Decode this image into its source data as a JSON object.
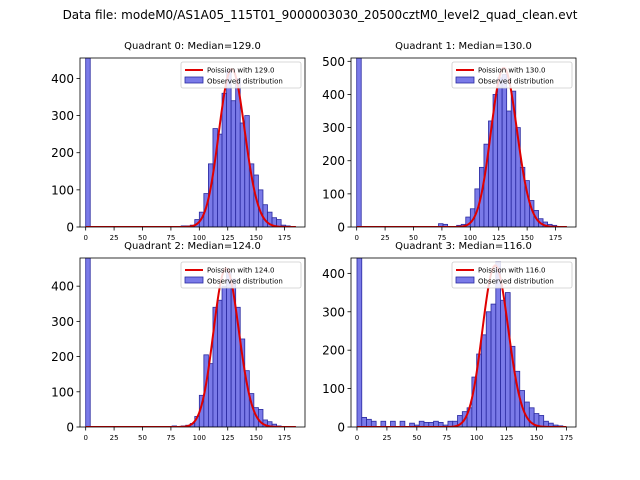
{
  "figure": {
    "title": "Data file: modeM0/AS1A05_115T01_9000003030_20500cztM0_level2_quad_clean.evt"
  },
  "colors": {
    "bar_fill": "#7a7ae8",
    "bar_edge": "#2a2aa0",
    "poisson_line": "#e00000"
  },
  "chart_data": [
    {
      "type": "bar",
      "title": "Quadrant 0: Median=129.0",
      "xlim": [
        -5,
        193
      ],
      "ylim": [
        0,
        455
      ],
      "xticks": [
        0,
        25,
        50,
        75,
        100,
        125,
        150,
        175
      ],
      "yticks": [
        0,
        100,
        200,
        300,
        400
      ],
      "bin_width": 4,
      "bins": [
        {
          "x": 0,
          "v": 455
        },
        {
          "x": 84,
          "v": 3
        },
        {
          "x": 88,
          "v": 3
        },
        {
          "x": 92,
          "v": 5
        },
        {
          "x": 96,
          "v": 20
        },
        {
          "x": 100,
          "v": 40
        },
        {
          "x": 104,
          "v": 90
        },
        {
          "x": 108,
          "v": 170
        },
        {
          "x": 112,
          "v": 265
        },
        {
          "x": 116,
          "v": 250
        },
        {
          "x": 120,
          "v": 360
        },
        {
          "x": 124,
          "v": 420
        },
        {
          "x": 128,
          "v": 340
        },
        {
          "x": 132,
          "v": 400
        },
        {
          "x": 136,
          "v": 280
        },
        {
          "x": 140,
          "v": 300
        },
        {
          "x": 144,
          "v": 170
        },
        {
          "x": 148,
          "v": 140
        },
        {
          "x": 152,
          "v": 100
        },
        {
          "x": 156,
          "v": 60
        },
        {
          "x": 160,
          "v": 40
        },
        {
          "x": 164,
          "v": 25
        },
        {
          "x": 168,
          "v": 20
        },
        {
          "x": 172,
          "v": 5
        },
        {
          "x": 176,
          "v": 3
        }
      ],
      "series": [
        {
          "name": "Poission with 129.0",
          "type": "line",
          "mean": 129.0,
          "peak": 425,
          "x_range": [
            0,
            185
          ]
        },
        {
          "name": "Observed distribution",
          "type": "bar"
        }
      ]
    },
    {
      "type": "bar",
      "title": "Quadrant 1: Median=130.0",
      "xlim": [
        -5,
        193
      ],
      "ylim": [
        0,
        510
      ],
      "xticks": [
        0,
        25,
        50,
        75,
        100,
        125,
        150,
        175
      ],
      "yticks": [
        0,
        100,
        200,
        300,
        400,
        500
      ],
      "bin_width": 4,
      "bins": [
        {
          "x": 0,
          "v": 510
        },
        {
          "x": 72,
          "v": 10
        },
        {
          "x": 76,
          "v": 8
        },
        {
          "x": 88,
          "v": 5
        },
        {
          "x": 92,
          "v": 8
        },
        {
          "x": 96,
          "v": 30
        },
        {
          "x": 100,
          "v": 55
        },
        {
          "x": 104,
          "v": 115
        },
        {
          "x": 108,
          "v": 180
        },
        {
          "x": 112,
          "v": 250
        },
        {
          "x": 116,
          "v": 320
        },
        {
          "x": 120,
          "v": 400
        },
        {
          "x": 124,
          "v": 450
        },
        {
          "x": 128,
          "v": 460
        },
        {
          "x": 132,
          "v": 350
        },
        {
          "x": 136,
          "v": 410
        },
        {
          "x": 140,
          "v": 300
        },
        {
          "x": 144,
          "v": 180
        },
        {
          "x": 148,
          "v": 140
        },
        {
          "x": 152,
          "v": 80
        },
        {
          "x": 156,
          "v": 50
        },
        {
          "x": 160,
          "v": 25
        },
        {
          "x": 164,
          "v": 15
        },
        {
          "x": 168,
          "v": 8
        },
        {
          "x": 172,
          "v": 5
        }
      ],
      "series": [
        {
          "name": "Poission with 130.0",
          "type": "line",
          "mean": 130.0,
          "peak": 480,
          "x_range": [
            0,
            185
          ]
        },
        {
          "name": "Observed distribution",
          "type": "bar"
        }
      ]
    },
    {
      "type": "bar",
      "title": "Quadrant 2: Median=124.0",
      "xlim": [
        -5,
        193
      ],
      "ylim": [
        0,
        480
      ],
      "xticks": [
        0,
        25,
        50,
        75,
        100,
        125,
        150,
        175
      ],
      "yticks": [
        0,
        100,
        200,
        300,
        400
      ],
      "bin_width": 4,
      "bins": [
        {
          "x": 0,
          "v": 480
        },
        {
          "x": 76,
          "v": 3
        },
        {
          "x": 84,
          "v": 3
        },
        {
          "x": 88,
          "v": 5
        },
        {
          "x": 92,
          "v": 10
        },
        {
          "x": 96,
          "v": 30
        },
        {
          "x": 100,
          "v": 90
        },
        {
          "x": 104,
          "v": 205
        },
        {
          "x": 108,
          "v": 180
        },
        {
          "x": 112,
          "v": 340
        },
        {
          "x": 116,
          "v": 360
        },
        {
          "x": 120,
          "v": 400
        },
        {
          "x": 124,
          "v": 440
        },
        {
          "x": 128,
          "v": 420
        },
        {
          "x": 132,
          "v": 340
        },
        {
          "x": 136,
          "v": 250
        },
        {
          "x": 140,
          "v": 160
        },
        {
          "x": 144,
          "v": 95
        },
        {
          "x": 148,
          "v": 55
        },
        {
          "x": 152,
          "v": 50
        },
        {
          "x": 156,
          "v": 20
        },
        {
          "x": 160,
          "v": 15
        },
        {
          "x": 164,
          "v": 8
        },
        {
          "x": 168,
          "v": 3
        }
      ],
      "series": [
        {
          "name": "Poission with 124.0",
          "type": "line",
          "mean": 124.0,
          "peak": 450,
          "x_range": [
            0,
            185
          ]
        },
        {
          "name": "Observed distribution",
          "type": "bar"
        }
      ]
    },
    {
      "type": "bar",
      "title": "Quadrant 3: Median=116.0",
      "xlim": [
        -5,
        183
      ],
      "ylim": [
        0,
        440
      ],
      "xticks": [
        0,
        25,
        50,
        75,
        100,
        125,
        150,
        175
      ],
      "yticks": [
        0,
        100,
        200,
        300,
        400
      ],
      "bin_width": 4,
      "bins": [
        {
          "x": 0,
          "v": 440
        },
        {
          "x": 4,
          "v": 25
        },
        {
          "x": 8,
          "v": 20
        },
        {
          "x": 12,
          "v": 15
        },
        {
          "x": 20,
          "v": 15
        },
        {
          "x": 28,
          "v": 15
        },
        {
          "x": 36,
          "v": 15
        },
        {
          "x": 44,
          "v": 10
        },
        {
          "x": 48,
          "v": 5
        },
        {
          "x": 52,
          "v": 15
        },
        {
          "x": 56,
          "v": 12
        },
        {
          "x": 60,
          "v": 12
        },
        {
          "x": 64,
          "v": 15
        },
        {
          "x": 68,
          "v": 12
        },
        {
          "x": 72,
          "v": 5
        },
        {
          "x": 76,
          "v": 15
        },
        {
          "x": 80,
          "v": 15
        },
        {
          "x": 84,
          "v": 30
        },
        {
          "x": 88,
          "v": 40
        },
        {
          "x": 92,
          "v": 50
        },
        {
          "x": 96,
          "v": 130
        },
        {
          "x": 100,
          "v": 190
        },
        {
          "x": 104,
          "v": 240
        },
        {
          "x": 108,
          "v": 300
        },
        {
          "x": 112,
          "v": 320
        },
        {
          "x": 116,
          "v": 430
        },
        {
          "x": 120,
          "v": 330
        },
        {
          "x": 124,
          "v": 350
        },
        {
          "x": 128,
          "v": 210
        },
        {
          "x": 132,
          "v": 145
        },
        {
          "x": 136,
          "v": 95
        },
        {
          "x": 140,
          "v": 65
        },
        {
          "x": 144,
          "v": 50
        },
        {
          "x": 148,
          "v": 35
        },
        {
          "x": 152,
          "v": 30
        },
        {
          "x": 156,
          "v": 15
        },
        {
          "x": 160,
          "v": 10
        },
        {
          "x": 164,
          "v": 5
        },
        {
          "x": 168,
          "v": 3
        }
      ],
      "series": [
        {
          "name": "Poission with 116.0",
          "type": "line",
          "mean": 116.0,
          "peak": 420,
          "x_range": [
            0,
            175
          ]
        },
        {
          "name": "Observed distribution",
          "type": "bar"
        }
      ]
    }
  ]
}
